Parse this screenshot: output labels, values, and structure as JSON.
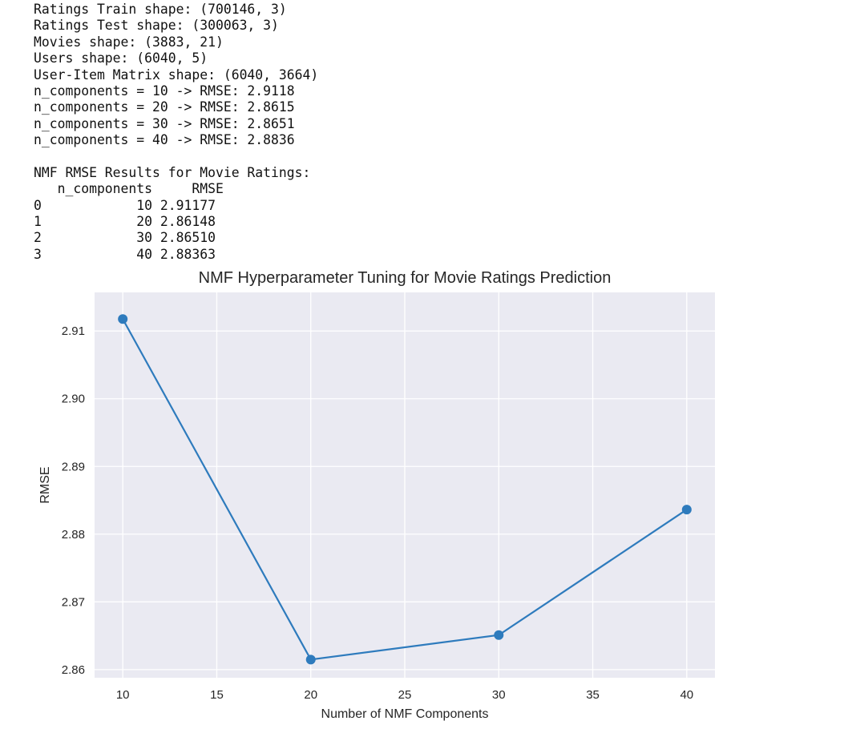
{
  "console_lines": [
    "Ratings Train shape: (700146, 3)",
    "Ratings Test shape: (300063, 3)",
    "Movies shape: (3883, 21)",
    "Users shape: (6040, 5)",
    "User-Item Matrix shape: (6040, 3664)",
    "n_components = 10 -> RMSE: 2.9118",
    "n_components = 20 -> RMSE: 2.8615",
    "n_components = 30 -> RMSE: 2.8651",
    "n_components = 40 -> RMSE: 2.8836",
    "",
    "NMF RMSE Results for Movie Ratings:",
    "   n_components     RMSE",
    "0            10 2.91177",
    "1            20 2.86148",
    "2            30 2.86510",
    "3            40 2.88363"
  ],
  "chart_data": {
    "type": "line",
    "title": "NMF Hyperparameter Tuning for Movie Ratings Prediction",
    "xlabel": "Number of NMF Components",
    "ylabel": "RMSE",
    "x": [
      10,
      20,
      30,
      40
    ],
    "series": [
      {
        "values": [
          2.91177,
          2.86148,
          2.8651,
          2.88363
        ],
        "color": "#2e7bbd",
        "marker": "circle"
      }
    ],
    "xlim": [
      8.5,
      41.5
    ],
    "ylim": [
      2.8588,
      2.9157
    ],
    "xticks": [
      10,
      15,
      20,
      25,
      30,
      35,
      40
    ],
    "xtick_labels": [
      "10",
      "15",
      "20",
      "25",
      "30",
      "35",
      "40"
    ],
    "yticks": [
      2.86,
      2.87,
      2.88,
      2.89,
      2.9,
      2.91
    ],
    "ytick_labels": [
      "2.86",
      "2.87",
      "2.88",
      "2.89",
      "2.90",
      "2.91"
    ],
    "grid": true,
    "background_color": "#eaeaf2",
    "grid_color": "#ffffff"
  }
}
